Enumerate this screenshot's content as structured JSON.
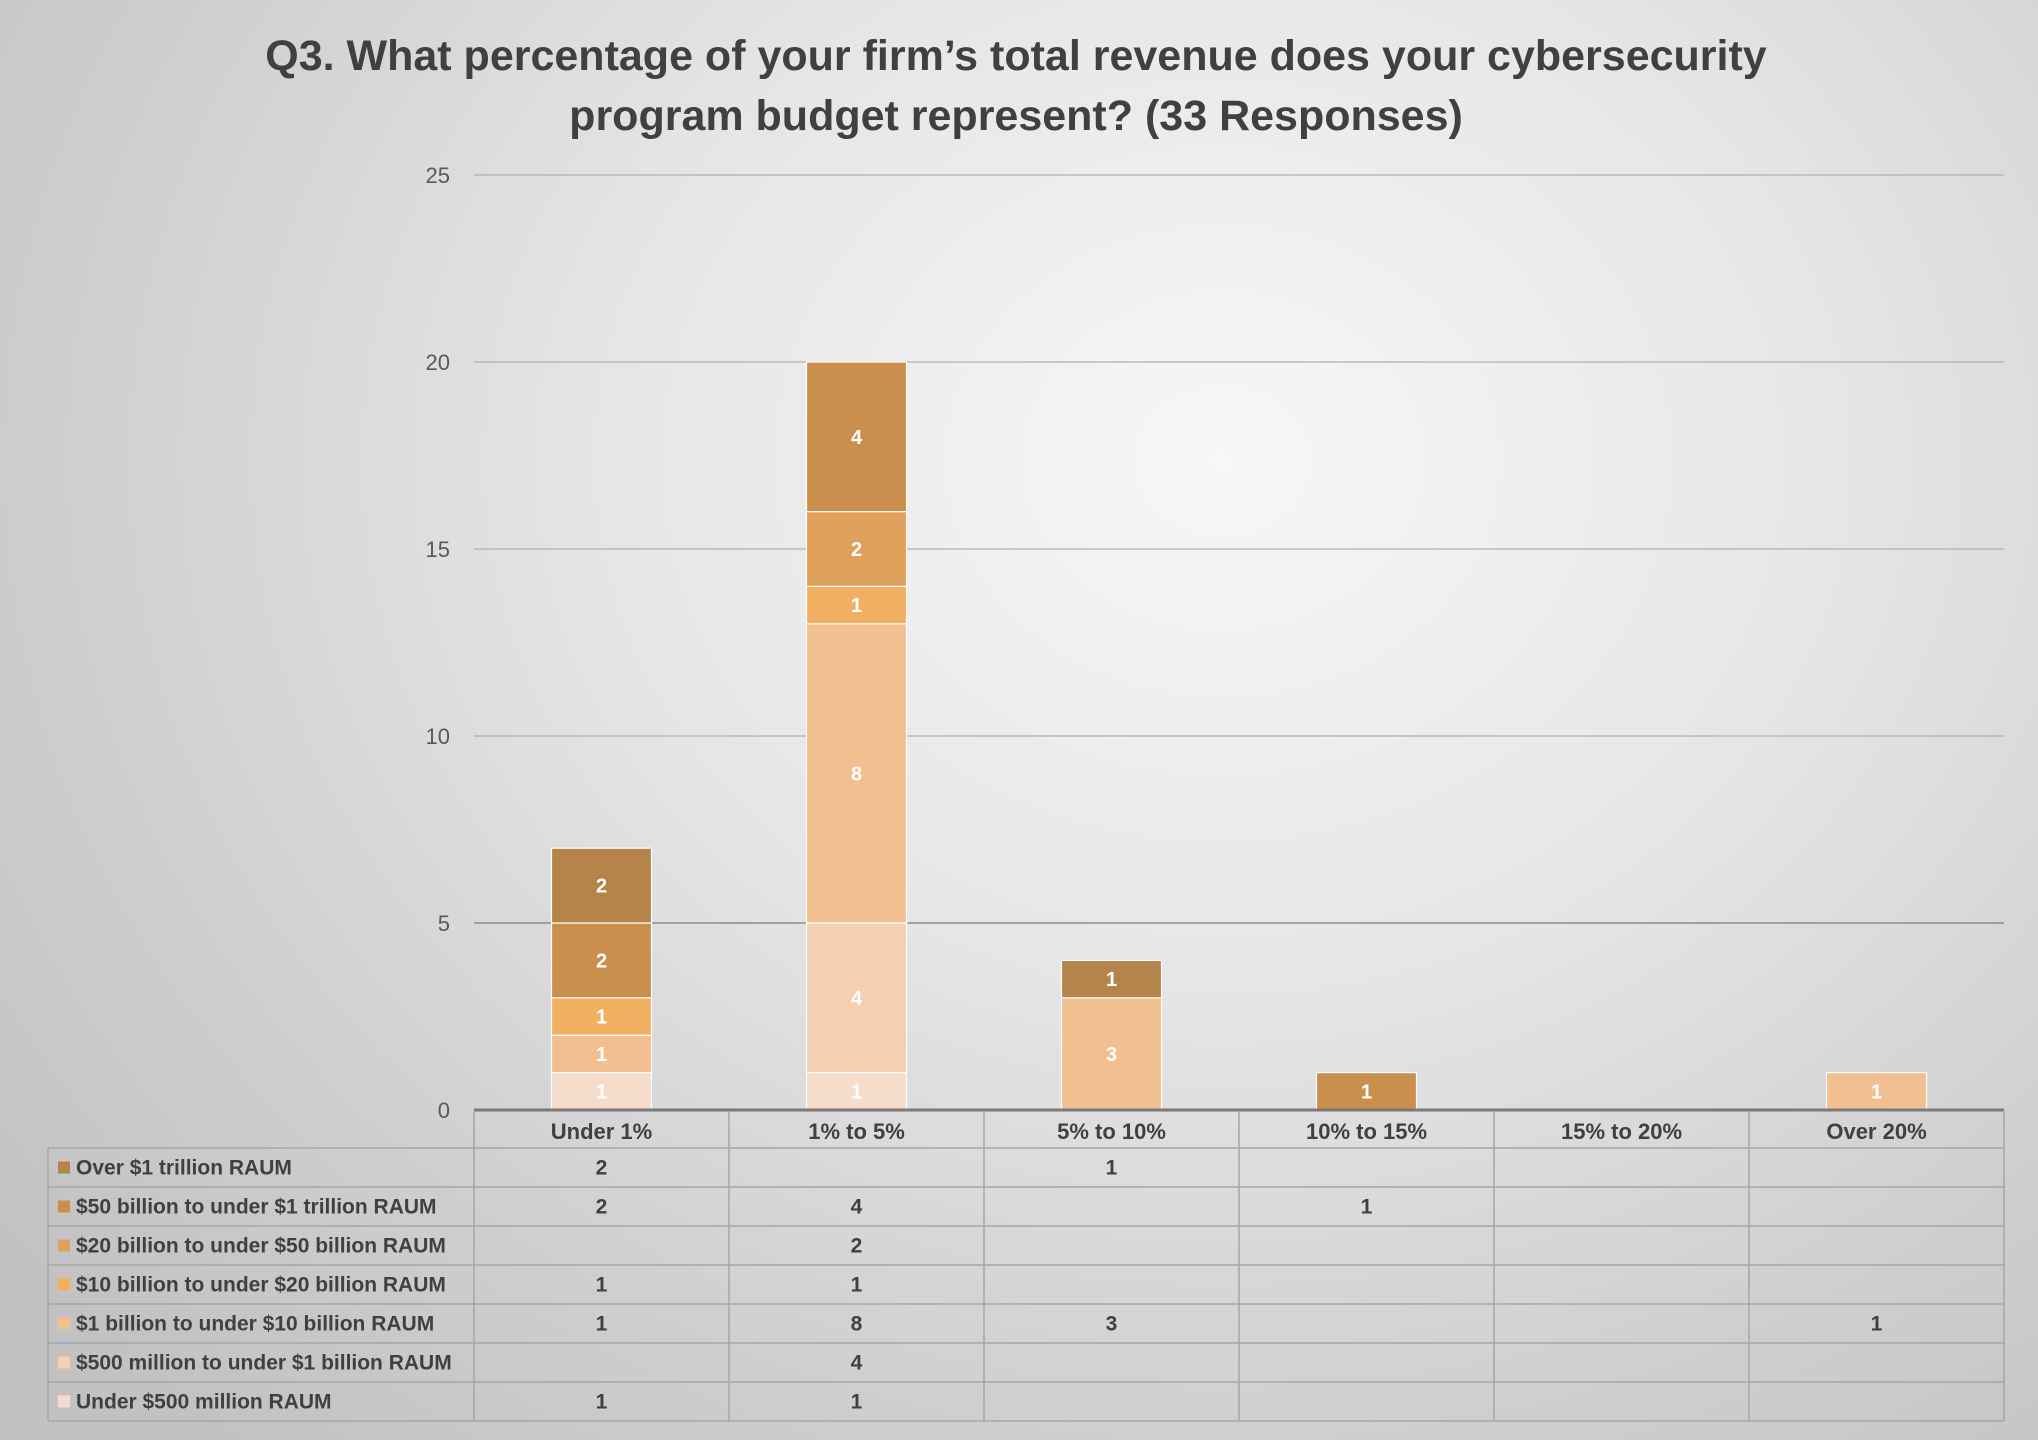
{
  "chart_data": {
    "type": "bar",
    "stacked": true,
    "title": "Q3. What percentage of your firm’s total revenue does your cybersecurity program budget represent? (33 Responses)",
    "title_lines": [
      "Q3. What percentage of your firm’s total revenue does your cybersecurity",
      "program budget represent? (33 Responses)"
    ],
    "categories": [
      "Under 1%",
      "1% to 5%",
      "5% to 10%",
      "10% to 15%",
      "15% to 20%",
      "Over 20%"
    ],
    "ylim": [
      0,
      25
    ],
    "yticks": [
      0,
      5,
      10,
      15,
      20,
      25
    ],
    "grid": true,
    "legend": "data-table-left",
    "series": [
      {
        "name": "Under $500 million RAUM",
        "color": "#f6dccb",
        "values": [
          1,
          1,
          null,
          null,
          null,
          null
        ]
      },
      {
        "name": "$500 million to under $1 billion RAUM",
        "color": "#f4cfb1",
        "values": [
          null,
          4,
          null,
          null,
          null,
          null
        ]
      },
      {
        "name": "$1 billion to under $10 billion RAUM",
        "color": "#f2bf90",
        "values": [
          1,
          8,
          3,
          null,
          null,
          1
        ]
      },
      {
        "name": "$10 billion to under $20 billion RAUM",
        "color": "#f1af61",
        "values": [
          1,
          1,
          null,
          null,
          null,
          null
        ]
      },
      {
        "name": "$20 billion to under $50 billion RAUM",
        "color": "#dea05a",
        "values": [
          null,
          2,
          null,
          null,
          null,
          null
        ]
      },
      {
        "name": "$50 billion to under $1 trillion RAUM",
        "color": "#cb8f4d",
        "values": [
          2,
          4,
          null,
          1,
          null,
          null
        ]
      },
      {
        "name": "Over $1 trillion RAUM",
        "color": "#b5844b",
        "values": [
          2,
          null,
          1,
          null,
          null,
          null
        ]
      }
    ]
  }
}
